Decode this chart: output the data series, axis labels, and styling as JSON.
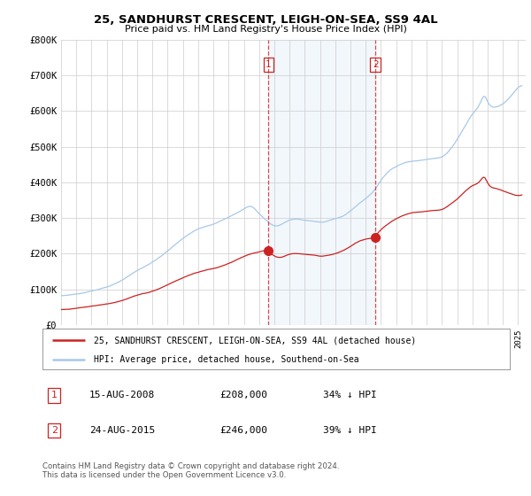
{
  "title": "25, SANDHURST CRESCENT, LEIGH-ON-SEA, SS9 4AL",
  "subtitle": "Price paid vs. HM Land Registry's House Price Index (HPI)",
  "hpi_color": "#a8c8e8",
  "price_color": "#cc2222",
  "marker1_x": 2008.62,
  "marker1_y": 208000,
  "marker2_x": 2015.64,
  "marker2_y": 246000,
  "shade_color": "#ddeeff",
  "legend_label1": "25, SANDHURST CRESCENT, LEIGH-ON-SEA, SS9 4AL (detached house)",
  "legend_label2": "HPI: Average price, detached house, Southend-on-Sea",
  "table_row1": [
    "1",
    "15-AUG-2008",
    "£208,000",
    "34% ↓ HPI"
  ],
  "table_row2": [
    "2",
    "24-AUG-2015",
    "£246,000",
    "39% ↓ HPI"
  ],
  "footnote": "Contains HM Land Registry data © Crown copyright and database right 2024.\nThis data is licensed under the Open Government Licence v3.0.",
  "background_color": "#ffffff",
  "grid_color": "#cccccc",
  "ylim": [
    0,
    800000
  ],
  "yticks": [
    0,
    100000,
    200000,
    300000,
    400000,
    500000,
    600000,
    700000,
    800000
  ],
  "ytick_labels": [
    "£0",
    "£100K",
    "£200K",
    "£300K",
    "£400K",
    "£500K",
    "£600K",
    "£700K",
    "£800K"
  ],
  "xlim_start": 1995.0,
  "xlim_end": 2025.5
}
